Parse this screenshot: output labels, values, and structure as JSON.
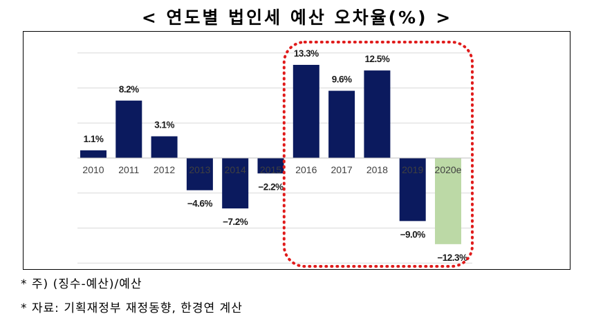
{
  "title": "< 연도별 법인세 예산 오차율(%) >",
  "notes": [
    "* 주) (징수-예산)/예산",
    "* 자료: 기획재정부 재정동향, 한경연 계산"
  ],
  "colors": {
    "bar": "#0b1a5e",
    "bar_estimate": "#bcd9a6",
    "highlight": "#e01b1b",
    "grid": "#d9d9d9"
  },
  "chart_data": {
    "type": "bar",
    "title": "< 연도별 법인세 예산 오차율(%) >",
    "xlabel": "",
    "ylabel": "",
    "ylim": [
      -15,
      15
    ],
    "grid": true,
    "categories": [
      "2010",
      "2011",
      "2012",
      "2013",
      "2014",
      "2015",
      "2016",
      "2017",
      "2018",
      "2019",
      "2020e"
    ],
    "values": [
      1.1,
      8.2,
      3.1,
      -4.6,
      -7.2,
      -2.2,
      13.3,
      9.6,
      12.5,
      -9.0,
      -12.3
    ],
    "data_labels": [
      "1.1%",
      "8.2%",
      "3.1%",
      "−4.6%",
      "−7.2%",
      "−2.2%",
      "13.3%",
      "9.6%",
      "12.5%",
      "−9.0%",
      "−12.3%"
    ],
    "estimate_index": 10,
    "highlight_range": [
      "2016",
      "2020e"
    ]
  }
}
